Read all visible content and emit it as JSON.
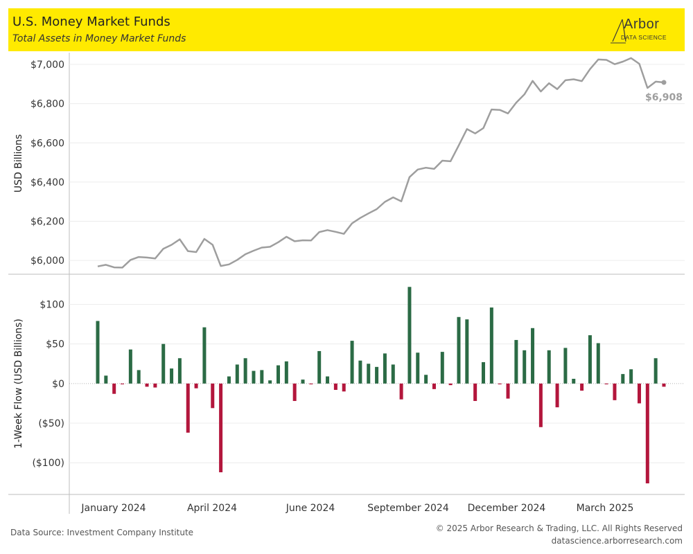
{
  "header": {
    "title": "U.S. Money Market Funds",
    "subtitle": "Total Assets in Money Market Funds",
    "logo_word": "Arbor",
    "logo_sub": "DATA SCIENCE"
  },
  "footer": {
    "source": "Data Source: Investment Company Institute",
    "copyright": "© 2025 Arbor Research & Trading, LLC. All Rights Reserved",
    "website": "datascience.arborresearch.com"
  },
  "colors": {
    "header_bg": "#ffea00",
    "assets_line": "#9e9e9e",
    "inflow": "#2b6b45",
    "outflow": "#b3163c"
  },
  "chart_data": [
    {
      "type": "line",
      "ylabel": "USD Billions",
      "ylim": [
        5930,
        7060
      ],
      "yticks": [
        6000,
        6200,
        6400,
        6600,
        6800,
        7000
      ],
      "ytick_labels": [
        "$6,000",
        "$6,200",
        "$6,400",
        "$6,600",
        "$6,800",
        "$7,000"
      ],
      "grid": true,
      "end_label": "$6,908",
      "series": [
        {
          "values": [
            5970,
            5978,
            5965,
            5964,
            6003,
            6018,
            6015,
            6010,
            6060,
            6080,
            6108,
            6048,
            6043,
            6110,
            6080,
            5972,
            5980,
            6003,
            6032,
            6050,
            6066,
            6070,
            6093,
            6121,
            6098,
            6103,
            6102,
            6145,
            6155,
            6146,
            6136,
            6190,
            6217,
            6240,
            6262,
            6299,
            6322,
            6302,
            6425,
            6464,
            6473,
            6467,
            6509,
            6506,
            6587,
            6670,
            6648,
            6675,
            6770,
            6768,
            6750,
            6805,
            6847,
            6916,
            6862,
            6904,
            6874,
            6919,
            6924,
            6915,
            6976,
            7025,
            7023,
            7001,
            7014,
            7032,
            7003,
            6880,
            6912,
            6908
          ]
        }
      ]
    },
    {
      "type": "bar",
      "ylabel": "1-Week Flow (USD Billions)",
      "ylim": [
        -140,
        138
      ],
      "yticks": [
        100,
        50,
        0,
        -50,
        -100
      ],
      "ytick_labels": [
        "$100",
        "$50",
        "$0",
        "($50)",
        "($100)"
      ],
      "grid": true,
      "series": [
        {
          "values": [
            79,
            10,
            -13,
            -1,
            43,
            17,
            -4,
            -5,
            50,
            19,
            32,
            -62,
            -6,
            71,
            -31,
            -112,
            9,
            24,
            32,
            16,
            17,
            4,
            23,
            28,
            -22,
            5,
            -1,
            41,
            9,
            -8,
            -10,
            54,
            29,
            25,
            21,
            38,
            24,
            -20,
            122,
            39,
            11,
            -7,
            40,
            -2,
            84,
            81,
            -22,
            27,
            96,
            -1,
            -19,
            55,
            42,
            70,
            -55,
            42,
            -30,
            45,
            6,
            -9,
            61,
            51,
            -1,
            -21,
            12,
            18,
            -25,
            -126,
            32,
            -4
          ]
        }
      ]
    }
  ],
  "x_axis": {
    "tick_labels": [
      "January 2024",
      "April 2024",
      "June 2024",
      "September 2024",
      "December 2024",
      "March 2025"
    ]
  }
}
